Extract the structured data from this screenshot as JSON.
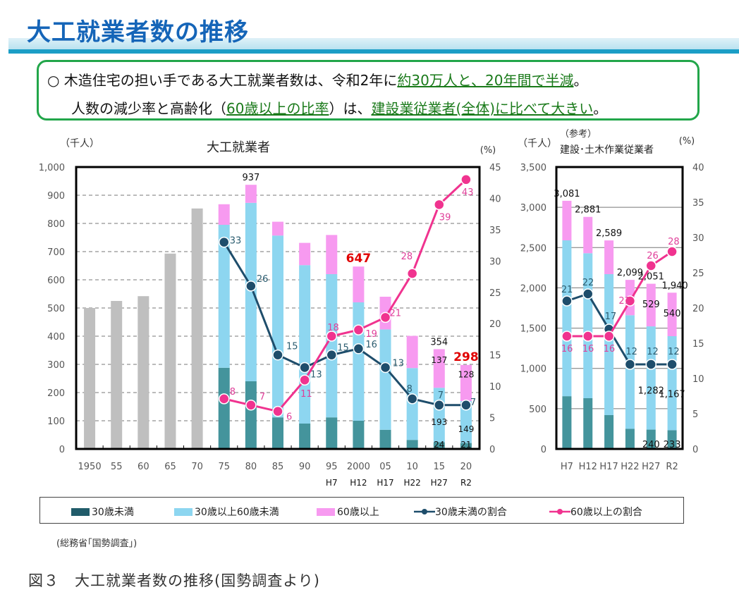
{
  "header": {
    "title": "大工就業者数の推移"
  },
  "summary": {
    "line1_prefix": "○ 木造住宅の担い手である大工就業者数は、令和2年に",
    "line1_emph": "約30万人と、20年間で半減",
    "line1_suffix": "。",
    "line2_prefix": "人数の減少率と高齢化（",
    "line2_emph1": "60歳以上の比率",
    "line2_mid": "）は、",
    "line2_emph2": "建設業従業者(全体)に比べて大きい",
    "line2_suffix": "。"
  },
  "colors": {
    "under30": "#44949c",
    "mid": "#8dd6f0",
    "over60": "#f79af0",
    "gray": "#bfbfbf",
    "line_under30": "#1e4d6b",
    "line_over60": "#f0338f",
    "highlight": "#e00000",
    "green": "#22a64a"
  },
  "chart_data": [
    {
      "type": "bar",
      "title": "大工就業者",
      "ylabel": "（千人）",
      "y2label": "(%)",
      "ylim": [
        0,
        1000
      ],
      "y2lim": [
        0,
        45
      ],
      "yticks": [
        "0",
        "100",
        "200",
        "300",
        "400",
        "500",
        "600",
        "700",
        "800",
        "900",
        "1,000"
      ],
      "y2ticks": [
        "0",
        "5",
        "10",
        "15",
        "20",
        "25",
        "30",
        "35",
        "40",
        "45"
      ],
      "grid": true,
      "categories": [
        "1950",
        "55",
        "60",
        "65",
        "70",
        "75",
        "80",
        "85",
        "90",
        "95",
        "2000",
        "05",
        "10",
        "15",
        "20"
      ],
      "era_labels": [
        "",
        "",
        "",
        "",
        "",
        "",
        "",
        "",
        "",
        "H7",
        "H12",
        "H17",
        "H22",
        "H27",
        "R2"
      ],
      "totals_only": [
        500,
        525,
        542,
        693,
        853,
        null,
        null,
        null,
        null,
        null,
        null,
        null,
        null,
        null,
        null
      ],
      "series": [
        {
          "name": "30歳未満",
          "values": [
            null,
            null,
            null,
            null,
            null,
            288,
            240,
            112,
            90,
            112,
            100,
            68,
            32,
            24,
            21
          ]
        },
        {
          "name": "30歳以上60歳未満",
          "values": [
            null,
            null,
            null,
            null,
            null,
            507,
            633,
            645,
            562,
            508,
            420,
            356,
            255,
            193,
            149
          ]
        },
        {
          "name": "60歳以上",
          "values": [
            null,
            null,
            null,
            null,
            null,
            73,
            64,
            49,
            79,
            139,
            127,
            116,
            114,
            137,
            128
          ]
        },
        {
          "name": "30歳未満の割合",
          "type": "line",
          "axis": "y2",
          "values": [
            null,
            null,
            null,
            null,
            null,
            33,
            26,
            15,
            13,
            15,
            16,
            13,
            8,
            7,
            7
          ]
        },
        {
          "name": "60歳以上の割合",
          "type": "line",
          "axis": "y2",
          "values": [
            null,
            null,
            null,
            null,
            null,
            8,
            7,
            6,
            11,
            18,
            19,
            21,
            28,
            39,
            43
          ]
        }
      ],
      "total_labels": [
        {
          "index": 6,
          "text": "937",
          "color": "#111"
        },
        {
          "index": 10,
          "text": "647",
          "color": "#e00000",
          "bold": true
        },
        {
          "index": 13,
          "text": "354",
          "color": "#111"
        },
        {
          "index": 14,
          "text": "298",
          "color": "#e00000",
          "bold": true
        }
      ],
      "segment_labels": [
        {
          "index": 13,
          "texts": [
            "24",
            "193",
            "137"
          ]
        },
        {
          "index": 14,
          "texts": [
            "21",
            "149",
            "128"
          ]
        }
      ]
    },
    {
      "type": "bar",
      "title": "建設･土木作業従業者",
      "subtitle": "（参考）",
      "ylabel": "（千人）",
      "y2label": "(%)",
      "ylim": [
        0,
        3500
      ],
      "y2lim": [
        0,
        40
      ],
      "yticks": [
        "0",
        "500",
        "1,000",
        "1,500",
        "2,000",
        "2,500",
        "3,000",
        "3,500"
      ],
      "y2ticks": [
        "0",
        "5",
        "10",
        "15",
        "20",
        "25",
        "30",
        "35",
        "40"
      ],
      "grid": true,
      "categories": [
        "H7",
        "H12",
        "H17",
        "H22",
        "H27",
        "R2"
      ],
      "series": [
        {
          "name": "30歳未満",
          "values": [
            655,
            630,
            420,
            250,
            240,
            233
          ]
        },
        {
          "name": "30歳以上60歳未満",
          "values": [
            1935,
            1800,
            1750,
            1410,
            1282,
            1167
          ]
        },
        {
          "name": "60歳以上",
          "values": [
            491,
            451,
            419,
            439,
            529,
            540
          ]
        },
        {
          "name": "30歳未満の割合",
          "type": "line",
          "axis": "y2",
          "values": [
            21,
            22,
            17,
            12,
            12,
            12
          ]
        },
        {
          "name": "60歳以上の割合",
          "type": "line",
          "axis": "y2",
          "values": [
            16,
            16,
            16,
            21,
            26,
            28
          ]
        }
      ],
      "total_labels": [
        "3,081",
        "2,881",
        "2,589",
        "2,099",
        "2,051",
        "1,940"
      ],
      "segment_labels": [
        {
          "index": 4,
          "texts": [
            "240",
            "1,282",
            "529"
          ]
        },
        {
          "index": 5,
          "texts": [
            "233",
            "1,167",
            "540"
          ]
        }
      ]
    }
  ],
  "legend": [
    {
      "label": "30歳未満",
      "kind": "bar",
      "color": "#215c6a"
    },
    {
      "label": "30歳以上60歳未満",
      "kind": "bar",
      "color": "#8dd6f0"
    },
    {
      "label": "60歳以上",
      "kind": "bar",
      "color": "#f79af0"
    },
    {
      "label": "30歳未満の割合",
      "kind": "line",
      "color": "#1e4d6b"
    },
    {
      "label": "60歳以上の割合",
      "kind": "line",
      "color": "#f0338f"
    }
  ],
  "source": "(総務省｢国勢調査｣)",
  "caption": "図３　大工就業者数の推移(国勢調査より)"
}
